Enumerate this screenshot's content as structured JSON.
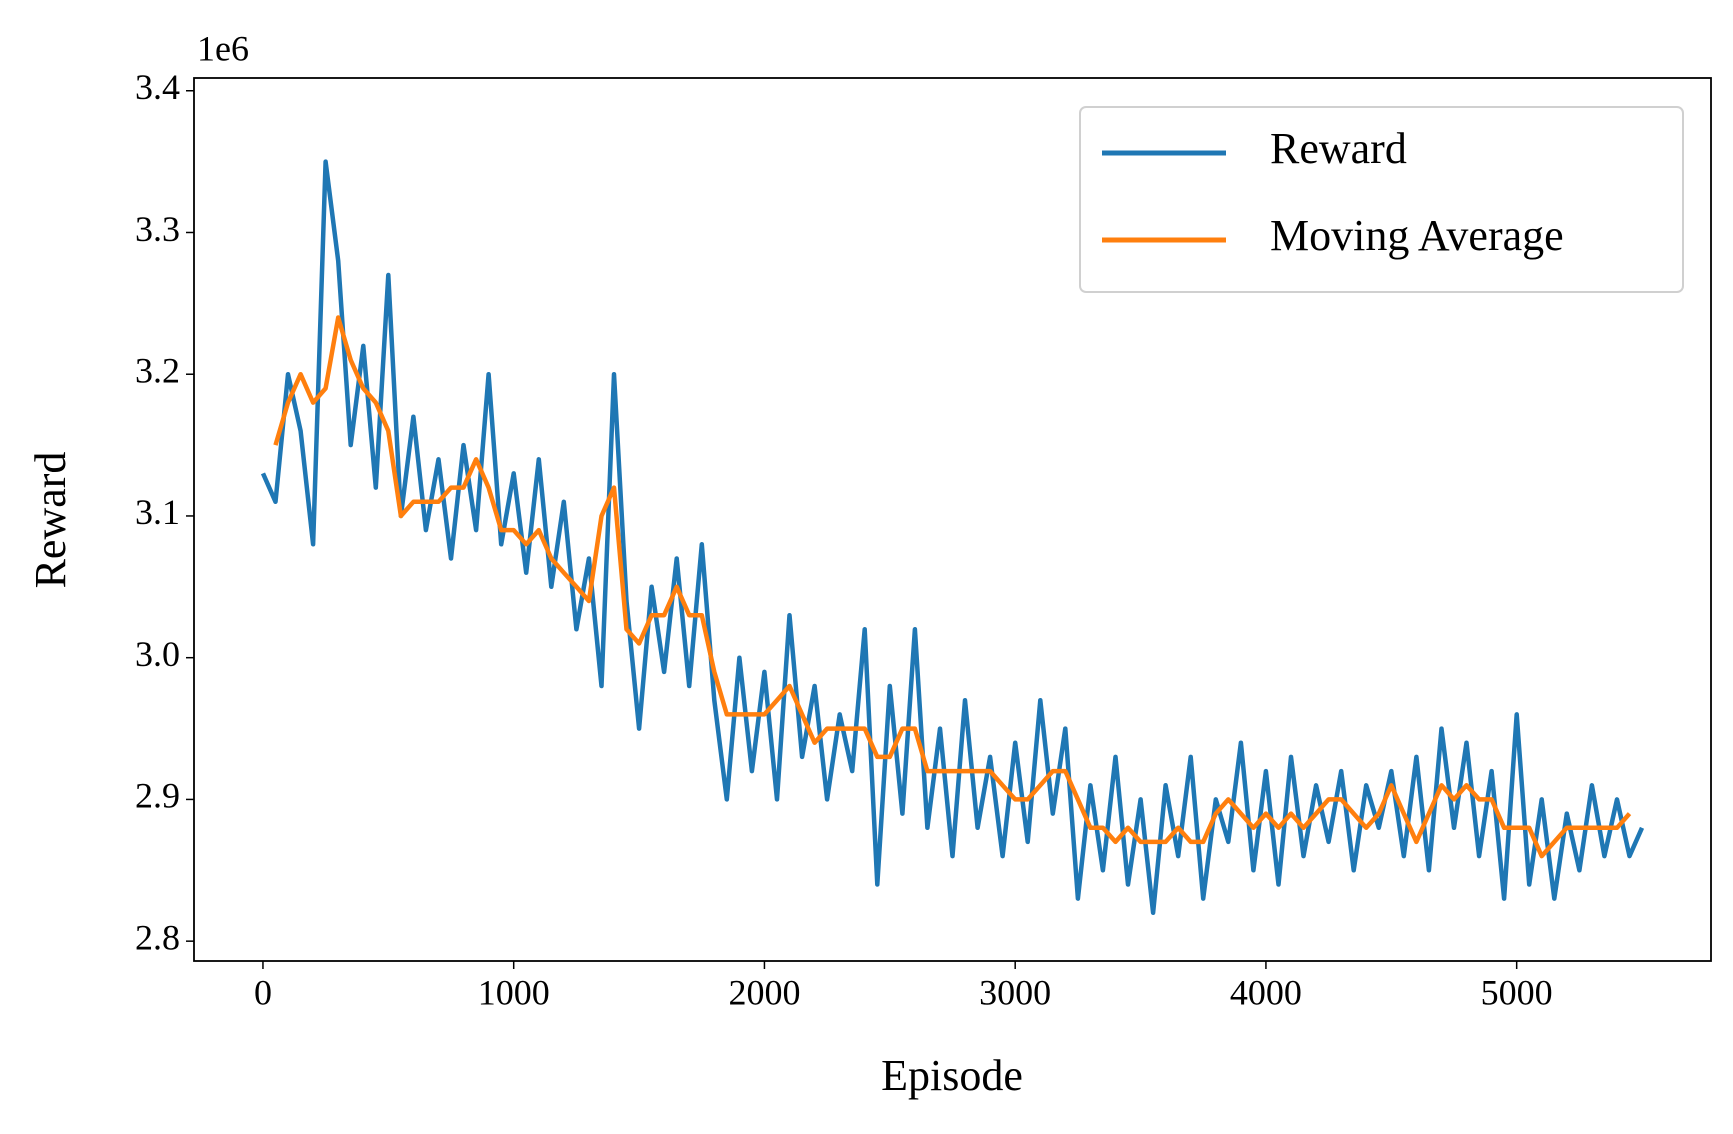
{
  "chart_data": {
    "type": "line",
    "x_label": "Episode",
    "y_label": "Reward",
    "y_offset_label": "1e6",
    "x": [
      0,
      50,
      100,
      150,
      200,
      250,
      300,
      350,
      400,
      450,
      500,
      550,
      600,
      650,
      700,
      750,
      800,
      850,
      900,
      950,
      1000,
      1050,
      1100,
      1150,
      1200,
      1250,
      1300,
      1350,
      1400,
      1450,
      1500,
      1550,
      1600,
      1650,
      1700,
      1750,
      1800,
      1850,
      1900,
      1950,
      2000,
      2050,
      2100,
      2150,
      2200,
      2250,
      2300,
      2350,
      2400,
      2450,
      2500,
      2550,
      2600,
      2650,
      2700,
      2750,
      2800,
      2850,
      2900,
      2950,
      3000,
      3050,
      3100,
      3150,
      3200,
      3250,
      3300,
      3350,
      3400,
      3450,
      3500,
      3550,
      3600,
      3650,
      3700,
      3750,
      3800,
      3850,
      3900,
      3950,
      4000,
      4050,
      4100,
      4150,
      4200,
      4250,
      4300,
      4350,
      4400,
      4450,
      4500,
      4550,
      4600,
      4650,
      4700,
      4750,
      4800,
      4850,
      4900,
      4950,
      5000,
      5050,
      5100,
      5150,
      5200,
      5250,
      5300,
      5350,
      5400,
      5450,
      5500
    ],
    "series": [
      {
        "name": "Reward",
        "color": "#1f77b4",
        "values": [
          3.13,
          3.11,
          3.2,
          3.16,
          3.08,
          3.35,
          3.28,
          3.15,
          3.22,
          3.12,
          3.27,
          3.1,
          3.17,
          3.09,
          3.14,
          3.07,
          3.15,
          3.09,
          3.2,
          3.08,
          3.13,
          3.06,
          3.14,
          3.05,
          3.11,
          3.02,
          3.07,
          2.98,
          3.2,
          3.04,
          2.95,
          3.05,
          2.99,
          3.07,
          2.98,
          3.08,
          2.97,
          2.9,
          3.0,
          2.92,
          2.99,
          2.9,
          3.03,
          2.93,
          2.98,
          2.9,
          2.96,
          2.92,
          3.02,
          2.84,
          2.98,
          2.89,
          3.02,
          2.88,
          2.95,
          2.86,
          2.97,
          2.88,
          2.93,
          2.86,
          2.94,
          2.87,
          2.97,
          2.89,
          2.95,
          2.83,
          2.91,
          2.85,
          2.93,
          2.84,
          2.9,
          2.82,
          2.91,
          2.86,
          2.93,
          2.83,
          2.9,
          2.87,
          2.94,
          2.85,
          2.92,
          2.84,
          2.93,
          2.86,
          2.91,
          2.87,
          2.92,
          2.85,
          2.91,
          2.88,
          2.92,
          2.86,
          2.93,
          2.85,
          2.95,
          2.88,
          2.94,
          2.86,
          2.92,
          2.83,
          2.96,
          2.84,
          2.9,
          2.83,
          2.89,
          2.85,
          2.91,
          2.86,
          2.9,
          2.86,
          2.88
        ]
      },
      {
        "name": "Moving Average",
        "color": "#ff7f0e",
        "values": [
          null,
          3.15,
          3.18,
          3.2,
          3.18,
          3.19,
          3.24,
          3.21,
          3.19,
          3.18,
          3.16,
          3.1,
          3.11,
          3.11,
          3.11,
          3.12,
          3.12,
          3.14,
          3.12,
          3.09,
          3.09,
          3.08,
          3.09,
          3.07,
          3.06,
          3.05,
          3.04,
          3.1,
          3.12,
          3.02,
          3.01,
          3.03,
          3.03,
          3.05,
          3.03,
          3.03,
          2.99,
          2.96,
          2.96,
          2.96,
          2.96,
          2.97,
          2.98,
          2.96,
          2.94,
          2.95,
          2.95,
          2.95,
          2.95,
          2.93,
          2.93,
          2.95,
          2.95,
          2.92,
          2.92,
          2.92,
          2.92,
          2.92,
          2.92,
          2.91,
          2.9,
          2.9,
          2.91,
          2.92,
          2.92,
          2.9,
          2.88,
          2.88,
          2.87,
          2.88,
          2.87,
          2.87,
          2.87,
          2.88,
          2.87,
          2.87,
          2.89,
          2.9,
          2.89,
          2.88,
          2.89,
          2.88,
          2.89,
          2.88,
          2.89,
          2.9,
          2.9,
          2.89,
          2.88,
          2.89,
          2.91,
          2.89,
          2.87,
          2.89,
          2.91,
          2.9,
          2.91,
          2.9,
          2.9,
          2.88,
          2.88,
          2.88,
          2.86,
          2.87,
          2.88,
          2.88,
          2.88,
          2.88,
          2.88,
          2.89,
          null
        ]
      }
    ],
    "xlim": [
      -275,
      5775
    ],
    "ylim": [
      2.786,
      3.409
    ],
    "xticks": [
      0,
      1000,
      2000,
      3000,
      4000,
      5000
    ],
    "yticks": [
      2.8,
      2.9,
      {
        "value": 3,
        "label": "3.0"
      },
      3.1,
      3.2,
      3.3,
      3.4
    ],
    "grid": false,
    "legend": "upper right"
  }
}
